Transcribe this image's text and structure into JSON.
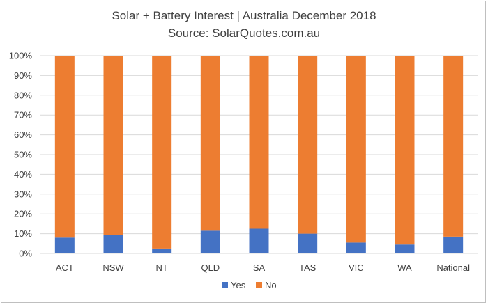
{
  "chart_data": {
    "type": "bar",
    "stacked": true,
    "title": "Solar + Battery Interest  | Australia December  2018",
    "subtitle": "Source: SolarQuotes.com.au",
    "categories": [
      "ACT",
      "NSW",
      "NT",
      "QLD",
      "SA",
      "TAS",
      "VIC",
      "WA",
      "National"
    ],
    "series": [
      {
        "name": "Yes",
        "color": "#4472c4",
        "values": [
          8,
          9.5,
          2.5,
          11.5,
          12.5,
          10,
          5.5,
          4.5,
          8.5
        ]
      },
      {
        "name": "No",
        "color": "#ed7d31",
        "values": [
          92,
          90.5,
          97.5,
          88.5,
          87.5,
          90,
          94.5,
          95.5,
          91.5
        ]
      }
    ],
    "yticks": [
      "0%",
      "10%",
      "20%",
      "30%",
      "40%",
      "50%",
      "60%",
      "70%",
      "80%",
      "90%",
      "100%"
    ],
    "ylim": [
      0,
      100
    ],
    "grid": true,
    "legend": "bottom"
  }
}
